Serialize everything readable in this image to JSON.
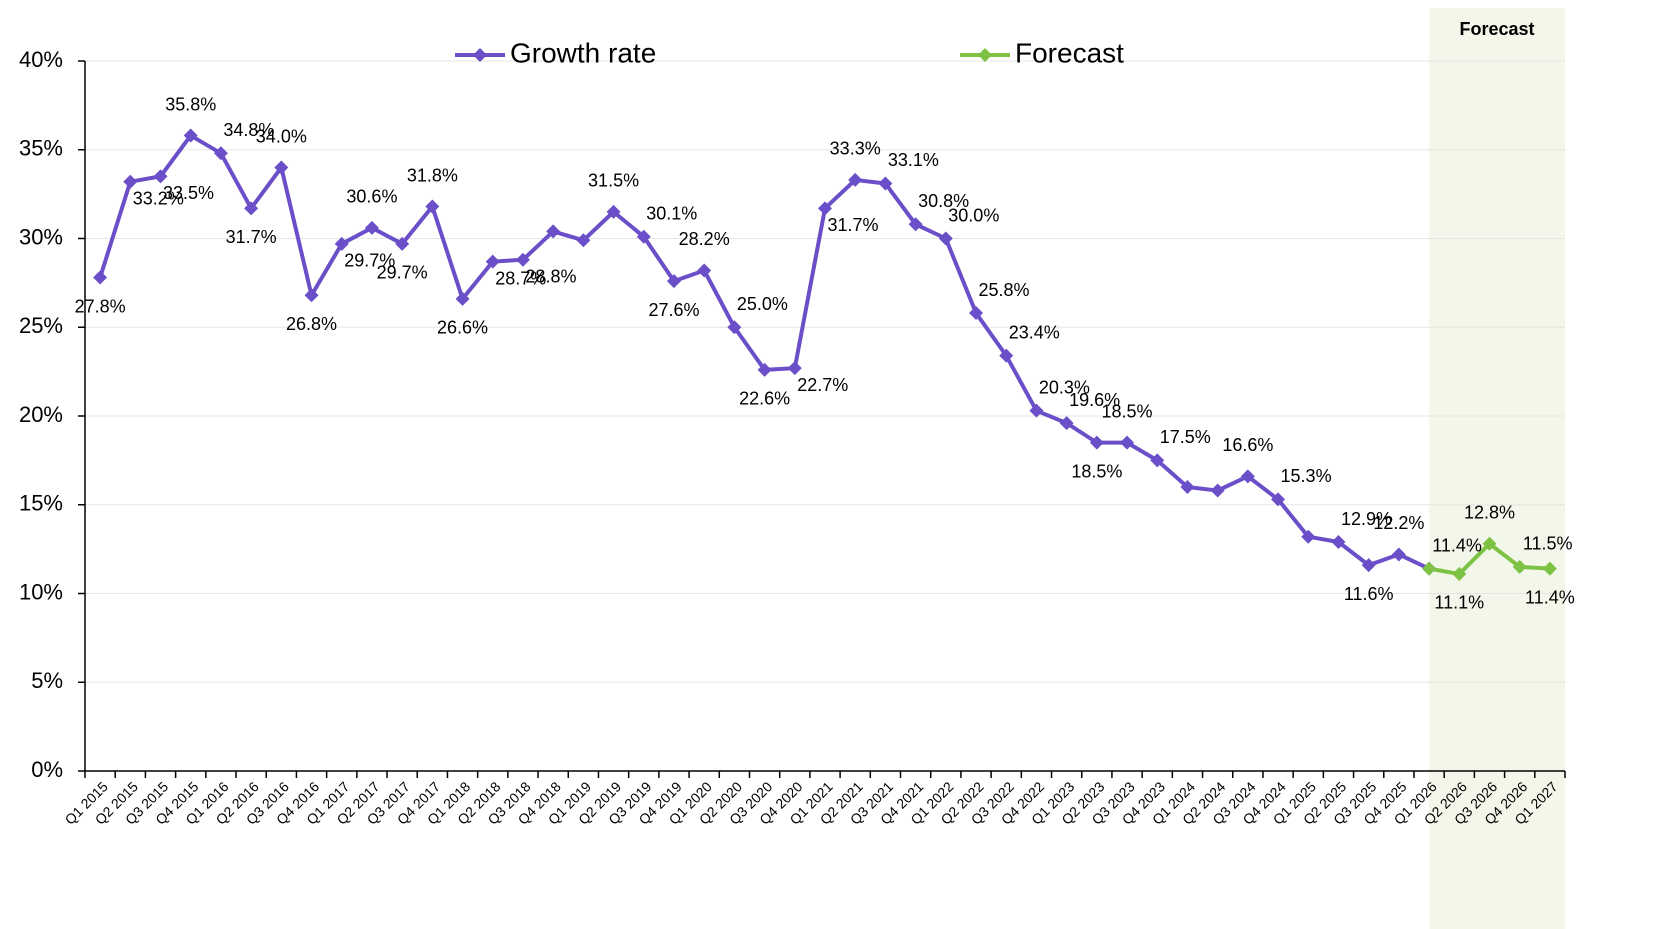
{
  "chart_data": {
    "type": "line",
    "categories": [
      "Q1 2015",
      "Q2 2015",
      "Q3 2015",
      "Q4 2015",
      "Q1 2016",
      "Q2 2016",
      "Q3 2016",
      "Q4 2016",
      "Q1 2017",
      "Q2 2017",
      "Q3 2017",
      "Q4 2017",
      "Q1 2018",
      "Q2 2018",
      "Q3 2018",
      "Q4 2018",
      "Q1 2019",
      "Q2 2019",
      "Q3 2019",
      "Q4 2019",
      "Q1 2020",
      "Q2 2020",
      "Q3 2020",
      "Q4 2020",
      "Q1 2021",
      "Q2 2021",
      "Q3 2021",
      "Q4 2021",
      "Q1 2022",
      "Q2 2022",
      "Q3 2022",
      "Q4 2022",
      "Q1 2023",
      "Q2 2023",
      "Q3 2023",
      "Q4 2023",
      "Q1 2024",
      "Q2 2024",
      "Q3 2024",
      "Q4 2024",
      "Q1 2025",
      "Q2 2025",
      "Q3 2025",
      "Q4 2025",
      "Q1 2026",
      "Q2 2026",
      "Q3 2026",
      "Q4 2026",
      "Q1 2027"
    ],
    "series": [
      {
        "name": "Growth rate",
        "color": "#6a4fc8",
        "values": [
          27.8,
          33.2,
          33.5,
          35.8,
          34.8,
          31.7,
          34.0,
          26.8,
          29.7,
          30.6,
          29.7,
          31.8,
          26.6,
          28.7,
          28.8,
          30.4,
          29.9,
          31.5,
          30.1,
          27.6,
          28.2,
          25.0,
          22.6,
          22.7,
          31.7,
          33.3,
          33.1,
          30.8,
          30.0,
          25.8,
          23.4,
          20.3,
          19.6,
          18.5,
          18.5,
          17.5,
          16.0,
          15.8,
          16.6,
          15.3,
          13.2,
          12.9,
          11.6,
          12.2,
          11.4,
          null,
          null,
          null,
          null
        ],
        "value_labels": [
          "27.8%",
          "33.2%",
          "33.5%",
          "35.8%",
          "34.8%",
          "31.7%",
          "34.0%",
          "26.8%",
          "29.7%",
          "30.6%",
          "29.7%",
          "31.8%",
          "26.6%",
          "28.7%",
          "28.8%",
          null,
          null,
          "31.5%",
          "30.1%",
          "27.6%",
          "28.2%",
          "25.0%",
          "22.6%",
          "22.7%",
          "31.7%",
          "33.3%",
          "33.1%",
          "30.8%",
          "30.0%",
          "25.8%",
          "23.4%",
          "20.3%",
          "19.6%",
          "18.5%",
          "18.5%",
          "17.5%",
          null,
          null,
          "16.6%",
          "15.3%",
          null,
          "12.9%",
          "11.6%",
          "12.2%",
          "11.4%",
          null,
          null,
          null,
          null
        ]
      },
      {
        "name": "Forecast",
        "color": "#7dc242",
        "values": [
          null,
          null,
          null,
          null,
          null,
          null,
          null,
          null,
          null,
          null,
          null,
          null,
          null,
          null,
          null,
          null,
          null,
          null,
          null,
          null,
          null,
          null,
          null,
          null,
          null,
          null,
          null,
          null,
          null,
          null,
          null,
          null,
          null,
          null,
          null,
          null,
          null,
          null,
          null,
          null,
          null,
          null,
          null,
          null,
          11.4,
          11.1,
          12.8,
          11.5,
          11.4
        ],
        "value_labels": [
          null,
          null,
          null,
          null,
          null,
          null,
          null,
          null,
          null,
          null,
          null,
          null,
          null,
          null,
          null,
          null,
          null,
          null,
          null,
          null,
          null,
          null,
          null,
          null,
          null,
          null,
          null,
          null,
          null,
          null,
          null,
          null,
          null,
          null,
          null,
          null,
          null,
          null,
          null,
          null,
          null,
          null,
          null,
          null,
          null,
          "11.1%",
          "12.8%",
          "11.5%",
          "11.4%"
        ]
      }
    ],
    "ylim": [
      0,
      40
    ],
    "yticks": [
      {
        "value": 0,
        "label": "0%"
      },
      {
        "value": 5,
        "label": "5%"
      },
      {
        "value": 10,
        "label": "10%"
      },
      {
        "value": 15,
        "label": "15%"
      },
      {
        "value": 20,
        "label": "20%"
      },
      {
        "value": 25,
        "label": "25%"
      },
      {
        "value": 30,
        "label": "30%"
      },
      {
        "value": 35,
        "label": "35%"
      },
      {
        "value": 40,
        "label": "40%"
      }
    ],
    "grid": true,
    "legend": "top",
    "shaded_region": {
      "label": "Forecast",
      "color": "#f3f7e9"
    }
  }
}
